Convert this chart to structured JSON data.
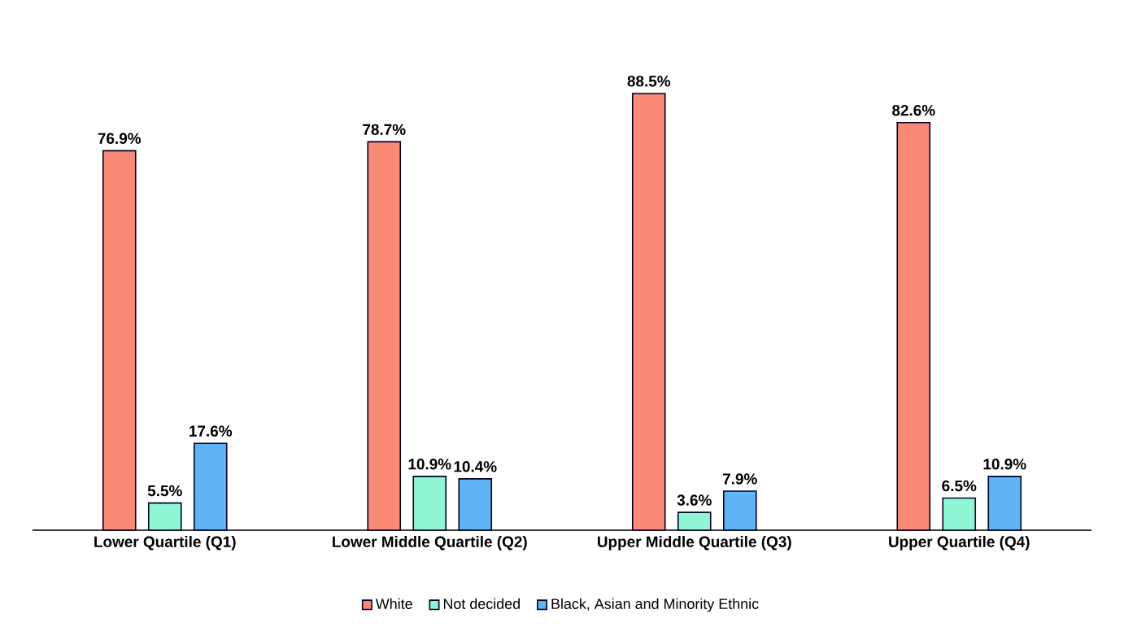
{
  "chart_data": {
    "type": "bar",
    "categories": [
      "Lower Quartile (Q1)",
      "Lower Middle Quartile (Q2)",
      "Upper Middle Quartile (Q3)",
      "Upper Quartile (Q4)"
    ],
    "series": [
      {
        "name": "White",
        "color": "#fa8a75",
        "values": [
          76.9,
          78.7,
          88.5,
          82.6
        ],
        "value_labels": [
          "76.9%",
          "78.7%",
          "88.5%",
          "82.6%"
        ]
      },
      {
        "name": "Not decided",
        "color": "#8ef5d5",
        "values": [
          5.5,
          10.9,
          3.6,
          6.5
        ],
        "value_labels": [
          "5.5%",
          "10.9%",
          "3.6%",
          "6.5%"
        ]
      },
      {
        "name": "Black, Asian and Minority Ethnic",
        "color": "#5fb4f5",
        "values": [
          17.6,
          10.4,
          7.9,
          10.9
        ],
        "value_labels": [
          "17.6%",
          "10.4%",
          "7.9%",
          "10.9%"
        ]
      }
    ],
    "legend": "bottom"
  }
}
